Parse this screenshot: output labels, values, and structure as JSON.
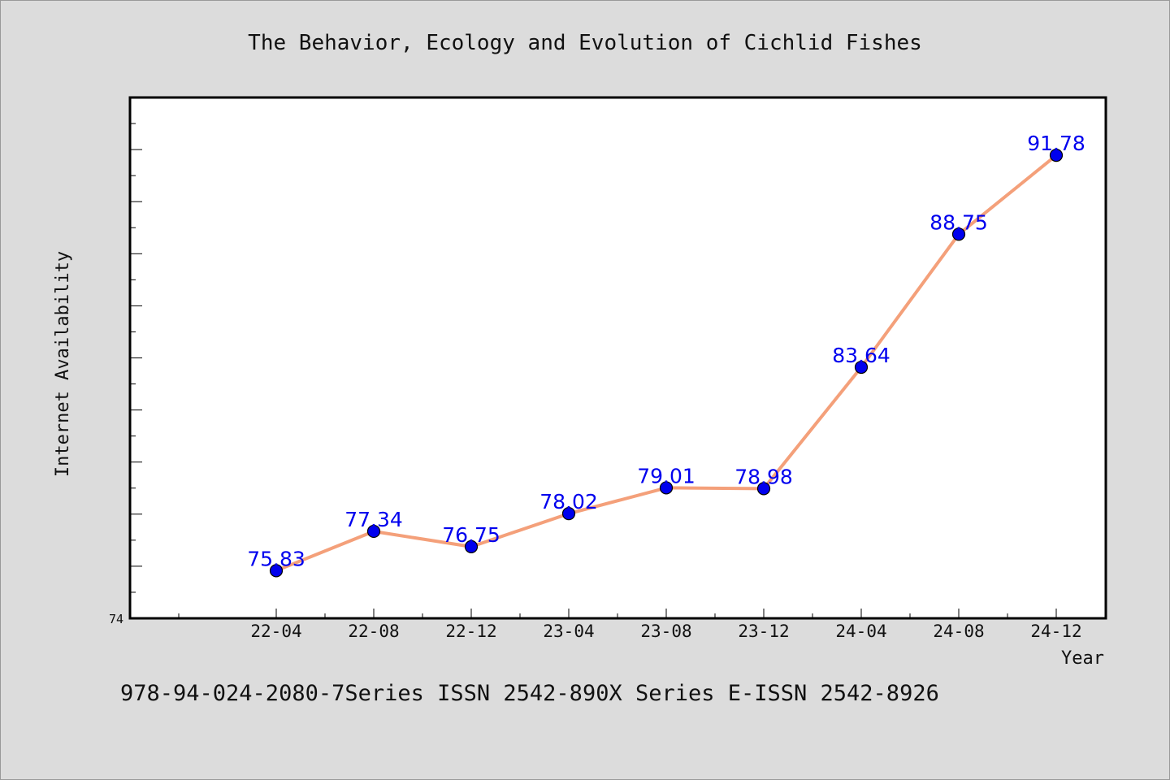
{
  "chart_data": {
    "type": "line",
    "title": "The Behavior, Ecology and Evolution of Cichlid Fishes",
    "xlabel": "Year",
    "ylabel": "Internet Availability",
    "categories": [
      "22-04",
      "22-08",
      "22-12",
      "23-04",
      "23-08",
      "23-12",
      "24-04",
      "24-08",
      "24-12"
    ],
    "values": [
      75.83,
      77.34,
      76.75,
      78.02,
      79.01,
      78.98,
      83.64,
      88.75,
      91.78
    ],
    "data_labels": [
      "75.83",
      "77.34",
      "76.75",
      "78.02",
      "79.01",
      "78.98",
      "83.64",
      "88.75",
      "91.78"
    ],
    "y_tick_label": "74",
    "ylim": [
      74,
      94
    ],
    "grid": false,
    "line_color": "#f4a07a",
    "marker_color": "#0000ee",
    "label_color": "#0000ee"
  },
  "footer": "978-94-024-2080-7Series ISSN 2542-890X Series E-ISSN 2542-8926"
}
